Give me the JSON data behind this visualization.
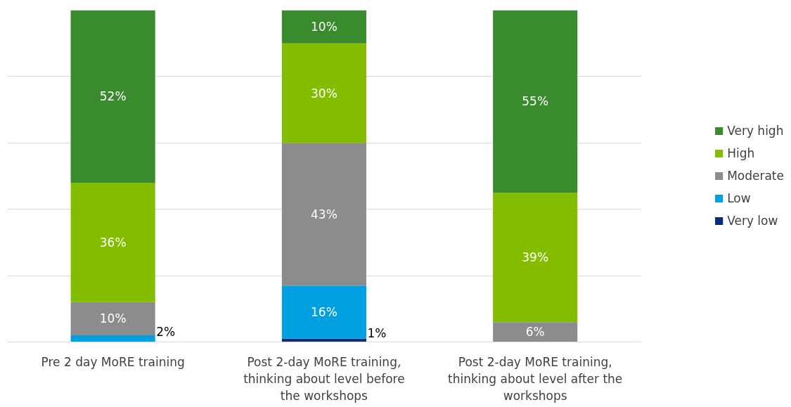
{
  "chart_data": {
    "type": "bar",
    "stacked": true,
    "categories": [
      "Pre 2 day MoRE training",
      "Post 2-day MoRE training, thinking about level before the workshops",
      "Post 2-day MoRE training, thinking about level after the workshops"
    ],
    "series": [
      {
        "name": "Very low",
        "color": "#0b2a78",
        "values": [
          null,
          1,
          null
        ],
        "value_labels": [
          null,
          "1%",
          null
        ]
      },
      {
        "name": "Low",
        "color": "#00a0e0",
        "values": [
          2,
          16,
          null
        ],
        "value_labels": [
          "2%",
          "16%",
          null
        ]
      },
      {
        "name": "Moderate",
        "color": "#8c8c8c",
        "values": [
          10,
          43,
          6
        ],
        "value_labels": [
          "10%",
          "43%",
          "6%"
        ]
      },
      {
        "name": "High",
        "color": "#84bd00",
        "values": [
          36,
          30,
          39
        ],
        "value_labels": [
          "36%",
          "30%",
          "39%"
        ]
      },
      {
        "name": "Very high",
        "color": "#3a8a2e",
        "values": [
          52,
          10,
          55
        ],
        "value_labels": [
          "52%",
          "10%",
          "55%"
        ]
      }
    ],
    "ylim": [
      0,
      100
    ],
    "yticks": [
      {
        "value": 20,
        "label": null
      },
      {
        "value": 40,
        "label": null
      },
      {
        "value": 60,
        "label": null
      },
      {
        "value": 80,
        "label": null
      }
    ],
    "data_labels": true,
    "grid": "y",
    "tick_labels": "x",
    "legend": "right"
  }
}
